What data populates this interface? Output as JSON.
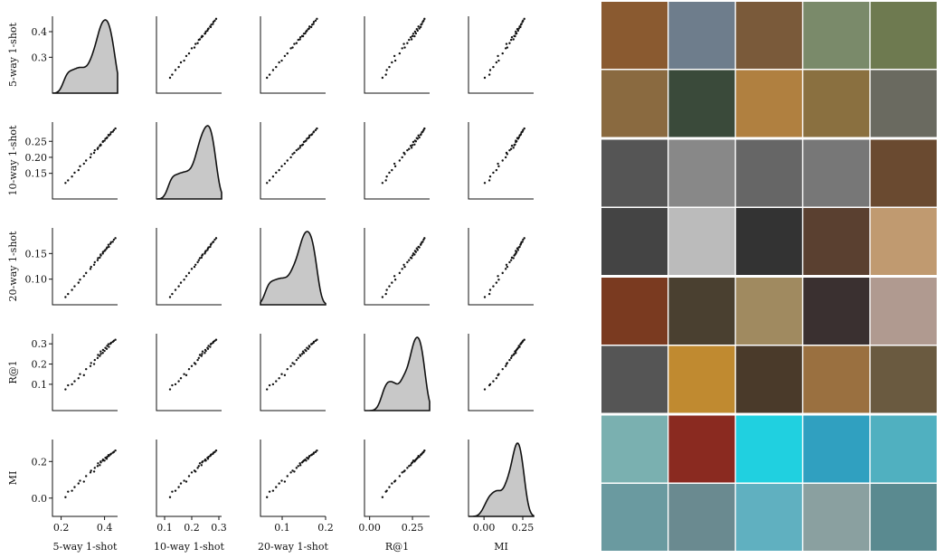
{
  "chart_data": {
    "type": "pairplot",
    "variables": [
      {
        "name": "5-way 1-shot",
        "lim": [
          0.16,
          0.46
        ],
        "xticks": [
          0.2,
          0.4
        ],
        "yticks": [
          0.3,
          0.4
        ],
        "values": [
          0.22,
          0.232,
          0.25,
          0.262,
          0.28,
          0.287,
          0.305,
          0.315,
          0.335,
          0.338,
          0.352,
          0.355,
          0.368,
          0.37,
          0.378,
          0.383,
          0.382,
          0.392,
          0.393,
          0.4,
          0.404,
          0.41,
          0.412,
          0.42,
          0.418,
          0.427,
          0.43,
          0.438,
          0.443,
          0.45
        ]
      },
      {
        "name": "10-way 1-shot",
        "lim": [
          0.07,
          0.31
        ],
        "xticks": [
          0.1,
          0.2,
          0.3
        ],
        "yticks": [
          0.15,
          {
            "value": 0.2,
            "label": "0.20"
          },
          0.25
        ],
        "values": [
          0.12,
          0.128,
          0.14,
          0.152,
          0.16,
          0.172,
          0.18,
          0.19,
          0.2,
          0.21,
          0.214,
          0.222,
          0.226,
          0.23,
          0.236,
          0.238,
          0.24,
          0.248,
          0.25,
          0.252,
          0.258,
          0.26,
          0.262,
          0.268,
          0.27,
          0.272,
          0.278,
          0.28,
          0.285,
          0.29
        ]
      },
      {
        "name": "20-way 1-shot",
        "lim": [
          0.05,
          0.2
        ],
        "xticks": [
          0.1,
          0.2
        ],
        "yticks": [
          {
            "value": 0.1,
            "label": "0.10"
          },
          0.15
        ],
        "values": [
          0.065,
          0.071,
          0.079,
          0.086,
          0.093,
          0.099,
          0.106,
          0.112,
          0.12,
          0.124,
          0.128,
          0.133,
          0.137,
          0.141,
          0.142,
          0.146,
          0.148,
          0.15,
          0.153,
          0.155,
          0.157,
          0.16,
          0.162,
          0.163,
          0.167,
          0.169,
          0.172,
          0.173,
          0.177,
          0.18
        ]
      },
      {
        "name": "R@1",
        "lim": [
          -0.03,
          0.35
        ],
        "xticks": [
          {
            "value": 0,
            "label": "0.00"
          },
          0.25
        ],
        "yticks": [
          0.1,
          0.2,
          0.3
        ],
        "values": [
          0.075,
          0.095,
          0.1,
          0.115,
          0.13,
          0.15,
          0.145,
          0.175,
          0.19,
          0.205,
          0.2,
          0.22,
          0.23,
          0.245,
          0.24,
          0.25,
          0.262,
          0.255,
          0.27,
          0.265,
          0.28,
          0.275,
          0.29,
          0.285,
          0.298,
          0.3,
          0.305,
          0.31,
          0.315,
          0.32
        ]
      },
      {
        "name": "MI",
        "lim": [
          -0.1,
          0.32
        ],
        "xticks": [
          {
            "value": 0,
            "label": "0.00"
          },
          0.25
        ],
        "yticks": [
          {
            "value": 0,
            "label": "0.0"
          },
          0.2
        ],
        "values": [
          0.005,
          0.035,
          0.04,
          0.06,
          0.08,
          0.095,
          0.09,
          0.12,
          0.14,
          0.15,
          0.145,
          0.165,
          0.175,
          0.19,
          0.18,
          0.195,
          0.2,
          0.205,
          0.21,
          0.205,
          0.22,
          0.215,
          0.225,
          0.23,
          0.235,
          0.238,
          0.242,
          0.248,
          0.252,
          0.26
        ]
      }
    ]
  }
}
